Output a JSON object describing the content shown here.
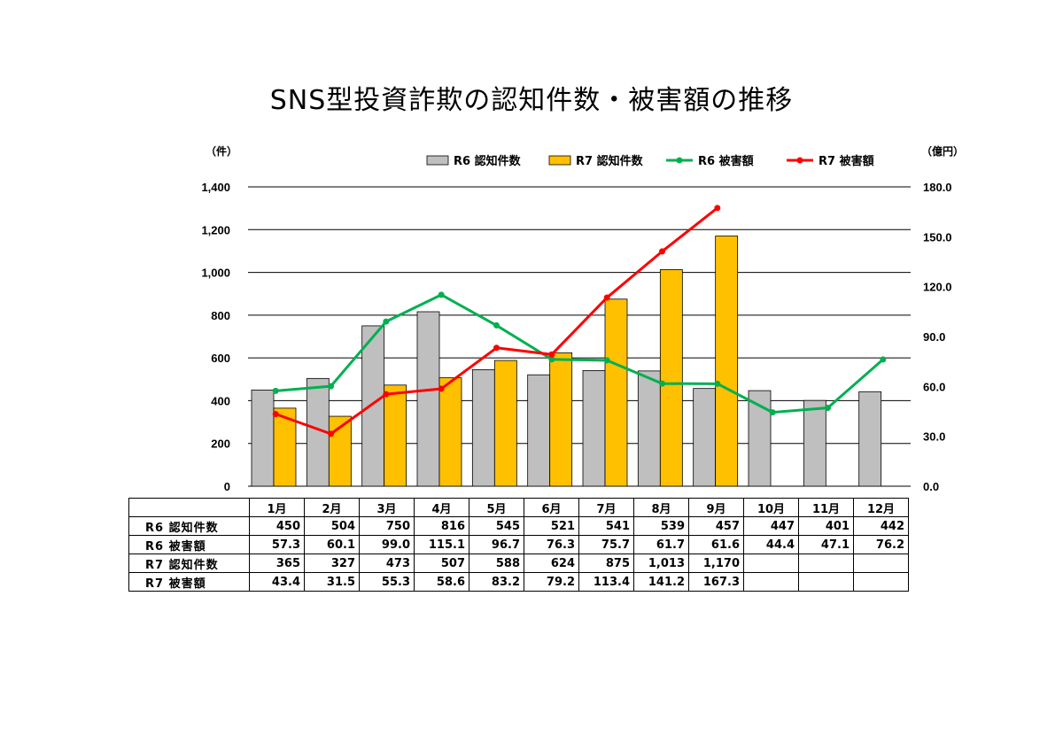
{
  "title": "SNS型投資詐欺の認知件数・被害額の推移",
  "units": {
    "left": "（件）",
    "right": "（億円）"
  },
  "table": {
    "headers": [
      "1月",
      "2月",
      "3月",
      "4月",
      "5月",
      "6月",
      "7月",
      "8月",
      "9月",
      "10月",
      "11月",
      "12月"
    ],
    "rows": [
      {
        "label": "R6 認知件数",
        "cells": [
          "450",
          "504",
          "750",
          "816",
          "545",
          "521",
          "541",
          "539",
          "457",
          "447",
          "401",
          "442"
        ]
      },
      {
        "label": "R6 被害額",
        "cells": [
          "57.3",
          "60.1",
          "99.0",
          "115.1",
          "96.7",
          "76.3",
          "75.7",
          "61.7",
          "61.6",
          "44.4",
          "47.1",
          "76.2"
        ]
      },
      {
        "label": "R7 認知件数",
        "cells": [
          "365",
          "327",
          "473",
          "507",
          "588",
          "624",
          "875",
          "1,013",
          "1,170",
          "",
          "",
          ""
        ]
      },
      {
        "label": "R7 被害額",
        "cells": [
          "43.4",
          "31.5",
          "55.3",
          "58.6",
          "83.2",
          "79.2",
          "113.4",
          "141.2",
          "167.3",
          "",
          "",
          ""
        ]
      }
    ]
  },
  "chart_data": {
    "type": "bar",
    "title": "SNS型投資詐欺の認知件数・被害額の推移",
    "categories": [
      "1月",
      "2月",
      "3月",
      "4月",
      "5月",
      "6月",
      "7月",
      "8月",
      "9月",
      "10月",
      "11月",
      "12月"
    ],
    "y_left": {
      "unit": "（件）",
      "ylim": [
        0,
        1400
      ],
      "ticks": [
        "0",
        "200",
        "400",
        "600",
        "800",
        "1,000",
        "1,200",
        "1,400"
      ],
      "tick_values": [
        0,
        200,
        400,
        600,
        800,
        1000,
        1200,
        1400
      ]
    },
    "y_right": {
      "unit": "（億円）",
      "ylim": [
        0,
        180
      ],
      "ticks": [
        "0.0",
        "30.0",
        "60.0",
        "90.0",
        "120.0",
        "150.0",
        "180.0"
      ],
      "tick_values": [
        0,
        30,
        60,
        90,
        120,
        150,
        180
      ]
    },
    "grid": true,
    "legend_position": "top-right",
    "series": [
      {
        "name": "R6 認知件数",
        "kind": "bar",
        "axis": "left",
        "color": "#bfbfbf",
        "values": [
          450,
          504,
          750,
          816,
          545,
          521,
          541,
          539,
          457,
          447,
          401,
          442
        ]
      },
      {
        "name": "R7 認知件数",
        "kind": "bar",
        "axis": "left",
        "color": "#ffc000",
        "values": [
          365,
          327,
          473,
          507,
          588,
          624,
          875,
          1013,
          1170,
          null,
          null,
          null
        ]
      },
      {
        "name": "R6 被害額",
        "kind": "line",
        "axis": "right",
        "color": "#00b050",
        "values": [
          57.3,
          60.1,
          99.0,
          115.1,
          96.7,
          76.3,
          75.7,
          61.7,
          61.6,
          44.4,
          47.1,
          76.2
        ]
      },
      {
        "name": "R7 被害額",
        "kind": "line",
        "axis": "right",
        "color": "#ff0000",
        "values": [
          43.4,
          31.5,
          55.3,
          58.6,
          83.2,
          79.2,
          113.4,
          141.2,
          167.3,
          null,
          null,
          null
        ]
      }
    ]
  }
}
